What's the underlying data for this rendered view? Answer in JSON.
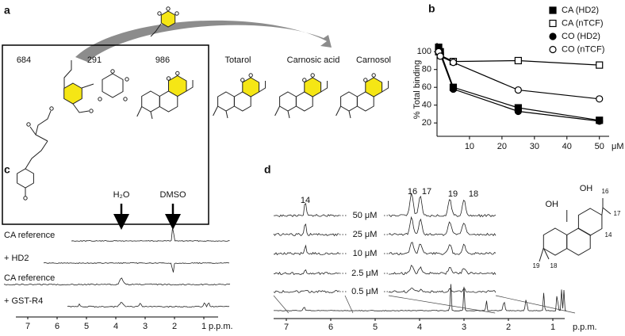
{
  "panel_a": {
    "label": "a",
    "compounds": [
      "684",
      "291",
      "986"
    ],
    "names": [
      "Totarol",
      "Carnosic acid",
      "Carnosol"
    ]
  },
  "chart_data": {
    "type": "line",
    "label": "b",
    "ylabel": "% Total binding",
    "xlabel": "μM",
    "x": [
      0.5,
      1,
      5,
      25,
      50
    ],
    "series": [
      {
        "name": "CA (HD2)",
        "color": "#000000",
        "marker": "square",
        "filled": true,
        "values": [
          105,
          100,
          60,
          37,
          23
        ]
      },
      {
        "name": "CA (nTCF)",
        "color": "#000000",
        "marker": "square",
        "filled": false,
        "values": [
          100,
          96,
          89,
          90,
          85
        ]
      },
      {
        "name": "CO (HD2)",
        "color": "#000000",
        "marker": "circle",
        "filled": true,
        "values": [
          103,
          97,
          58,
          33,
          22
        ]
      },
      {
        "name": "CO (nTCF)",
        "color": "#000000",
        "marker": "circle",
        "filled": false,
        "values": [
          100,
          95,
          88,
          57,
          47
        ]
      }
    ],
    "xlim": [
      0,
      53
    ],
    "ylim": [
      5,
      110
    ],
    "xticks": [
      10,
      20,
      30,
      40,
      50
    ],
    "yticks": [
      20,
      40,
      60,
      80,
      100
    ]
  },
  "panel_c": {
    "label": "c",
    "peaks": [
      "H₂O",
      "DMSO"
    ],
    "traces": [
      "CA reference",
      "+ HD2",
      "CA reference",
      "+ GST-R4"
    ],
    "axis_ticks": [
      "7",
      "6",
      "5",
      "4",
      "3",
      "2",
      "1"
    ],
    "axis_unit": "p.p.m."
  },
  "panel_d": {
    "label": "d",
    "peak_labels": [
      "14",
      "16",
      "17",
      "19",
      "18"
    ],
    "concentrations": [
      "50 μM",
      "25 μM",
      "10 μM",
      "2.5 μM",
      "0.5 μM"
    ],
    "axis_ticks": [
      "7",
      "6",
      "5",
      "4",
      "3",
      "2",
      "1"
    ],
    "axis_unit": "p.p.m.",
    "structure_labels": [
      "OH",
      "OH",
      "16",
      "17",
      "14",
      "19",
      "18"
    ]
  }
}
